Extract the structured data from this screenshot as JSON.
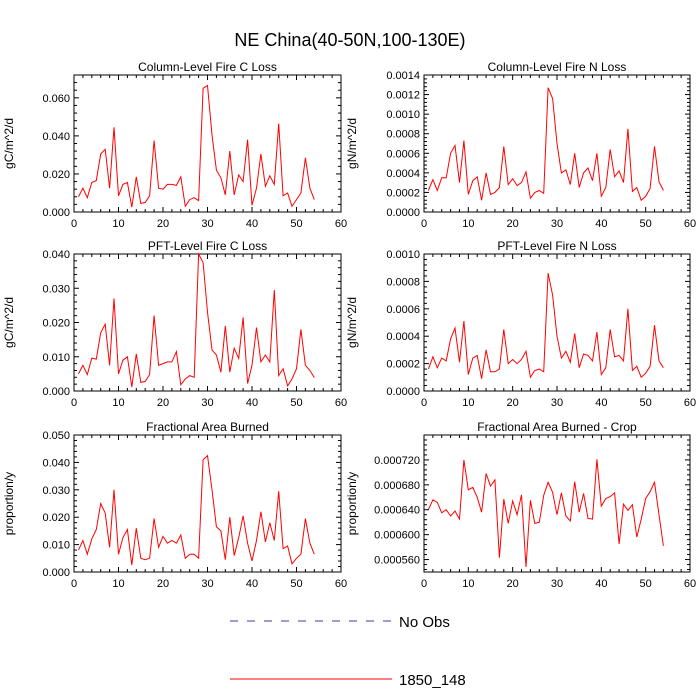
{
  "page": {
    "title": "NE China(40-50N,100-130E)"
  },
  "legend": {
    "items": [
      {
        "label": "No Obs",
        "color": "#3a3aa8",
        "style": "dashed"
      },
      {
        "label": "1850_148",
        "color": "#ff0000",
        "style": "solid"
      }
    ]
  },
  "chart_data": [
    {
      "type": "line",
      "title": "Column-Level Fire C Loss",
      "ylabel": "gC/m^2/d",
      "xlim": [
        0,
        60
      ],
      "ylim": [
        0,
        0.072
      ],
      "xticks": [
        0,
        10,
        20,
        30,
        40,
        50,
        60
      ],
      "yticks": [
        0,
        0.02,
        0.04,
        0.06
      ],
      "ytick_labels": [
        "0.000",
        "0.020",
        "0.040",
        "0.060"
      ],
      "series": [
        {
          "name": "1850_148",
          "color": "#ff0000",
          "x": [
            1,
            2,
            3,
            4,
            5,
            6,
            7,
            8,
            9,
            10,
            11,
            12,
            13,
            14,
            15,
            16,
            17,
            18,
            19,
            20,
            21,
            22,
            23,
            24,
            25,
            26,
            27,
            28,
            29,
            30,
            31,
            32,
            33,
            34,
            35,
            36,
            37,
            38,
            39,
            40,
            41,
            42,
            43,
            44,
            45,
            46,
            47,
            48,
            49,
            50,
            51,
            52,
            53,
            54
          ],
          "y": [
            0.008,
            0.0125,
            0.0075,
            0.0155,
            0.0165,
            0.0305,
            0.033,
            0.0125,
            0.0445,
            0.0085,
            0.0145,
            0.0155,
            0.0025,
            0.0185,
            0.0045,
            0.005,
            0.0085,
            0.0375,
            0.0125,
            0.012,
            0.0145,
            0.0145,
            0.014,
            0.0185,
            0.003,
            0.0065,
            0.0075,
            0.006,
            0.065,
            0.0665,
            0.0405,
            0.022,
            0.018,
            0.009,
            0.032,
            0.009,
            0.0195,
            0.016,
            0.038,
            0.0035,
            0.0125,
            0.0305,
            0.0135,
            0.019,
            0.0145,
            0.0465,
            0.0085,
            0.01,
            0.003,
            0.0065,
            0.01,
            0.0285,
            0.0125,
            0.0065
          ]
        }
      ]
    },
    {
      "type": "line",
      "title": "Column-Level Fire N Loss",
      "ylabel": "gN/m^2/d",
      "xlim": [
        0,
        60
      ],
      "ylim": [
        0,
        0.0014
      ],
      "xticks": [
        0,
        10,
        20,
        30,
        40,
        50,
        60
      ],
      "yticks": [
        0,
        0.0002,
        0.0004,
        0.0006,
        0.0008,
        0.001,
        0.0012,
        0.0014
      ],
      "ytick_labels": [
        "0.0000",
        "0.0002",
        "0.0004",
        "0.0006",
        "0.0008",
        "0.0010",
        "0.0012",
        "0.0014"
      ],
      "series": [
        {
          "name": "1850_148",
          "color": "#ff0000",
          "x": [
            1,
            2,
            3,
            4,
            5,
            6,
            7,
            8,
            9,
            10,
            11,
            12,
            13,
            14,
            15,
            16,
            17,
            18,
            19,
            20,
            21,
            22,
            23,
            24,
            25,
            26,
            27,
            28,
            29,
            30,
            31,
            32,
            33,
            34,
            35,
            36,
            37,
            38,
            39,
            40,
            41,
            42,
            43,
            44,
            45,
            46,
            47,
            48,
            49,
            50,
            51,
            52,
            53,
            54
          ],
          "y": [
            0.00022,
            0.00033,
            0.00022,
            0.00035,
            0.00035,
            0.0006,
            0.00068,
            0.0003,
            0.00073,
            0.00018,
            0.00032,
            0.00036,
            0.00012,
            0.0004,
            0.00018,
            0.0002,
            0.00025,
            0.00067,
            0.00028,
            0.00034,
            0.00027,
            0.0003,
            0.00041,
            0.00014,
            0.0002,
            0.00022,
            0.00019,
            0.00127,
            0.00116,
            0.0007,
            0.0004,
            0.00043,
            0.00028,
            0.0006,
            0.00025,
            0.0004,
            0.00045,
            0.00032,
            0.0006,
            0.00016,
            0.00025,
            0.00064,
            0.00036,
            0.00042,
            0.0003,
            0.00085,
            0.00021,
            0.00025,
            0.00012,
            0.00016,
            0.00024,
            0.00067,
            0.00031,
            0.00022
          ]
        }
      ]
    },
    {
      "type": "line",
      "title": "PFT-Level Fire C Loss",
      "ylabel": "gC/m^2/d",
      "xlim": [
        0,
        60
      ],
      "ylim": [
        0,
        0.04
      ],
      "xticks": [
        0,
        10,
        20,
        30,
        40,
        50,
        60
      ],
      "yticks": [
        0,
        0.01,
        0.02,
        0.03,
        0.04
      ],
      "ytick_labels": [
        "0.000",
        "0.010",
        "0.020",
        "0.030",
        "0.040"
      ],
      "series": [
        {
          "name": "1850_148",
          "color": "#ff0000",
          "x": [
            1,
            2,
            3,
            4,
            5,
            6,
            7,
            8,
            9,
            10,
            11,
            12,
            13,
            14,
            15,
            16,
            17,
            18,
            19,
            20,
            21,
            22,
            23,
            24,
            25,
            26,
            27,
            28,
            29,
            30,
            31,
            32,
            33,
            34,
            35,
            36,
            37,
            38,
            39,
            40,
            41,
            42,
            43,
            44,
            45,
            46,
            47,
            48,
            49,
            50,
            51,
            52,
            53,
            54
          ],
          "y": [
            0.005,
            0.0075,
            0.0048,
            0.0096,
            0.0093,
            0.017,
            0.0195,
            0.0075,
            0.027,
            0.005,
            0.009,
            0.01,
            0.0012,
            0.0108,
            0.0025,
            0.0028,
            0.0048,
            0.022,
            0.0075,
            0.008,
            0.0085,
            0.0085,
            0.0115,
            0.0018,
            0.0035,
            0.0045,
            0.004,
            0.04,
            0.0375,
            0.023,
            0.012,
            0.0105,
            0.0055,
            0.019,
            0.0055,
            0.0125,
            0.0095,
            0.0215,
            0.0022,
            0.0075,
            0.0185,
            0.0085,
            0.0105,
            0.0085,
            0.0295,
            0.0045,
            0.0065,
            0.0015,
            0.0035,
            0.0065,
            0.018,
            0.0075,
            0.006,
            0.0039
          ]
        }
      ]
    },
    {
      "type": "line",
      "title": "PFT-Level Fire N Loss",
      "ylabel": "gN/m^2/d",
      "xlim": [
        0,
        60
      ],
      "ylim": [
        0,
        0.001
      ],
      "xticks": [
        0,
        10,
        20,
        30,
        40,
        50,
        60
      ],
      "yticks": [
        0,
        0.0002,
        0.0004,
        0.0006,
        0.0008,
        0.001
      ],
      "ytick_labels": [
        "0.0000",
        "0.0002",
        "0.0004",
        "0.0006",
        "0.0008",
        "0.0010"
      ],
      "series": [
        {
          "name": "1850_148",
          "color": "#ff0000",
          "x": [
            1,
            2,
            3,
            4,
            5,
            6,
            7,
            8,
            9,
            10,
            11,
            12,
            13,
            14,
            15,
            16,
            17,
            18,
            19,
            20,
            21,
            22,
            23,
            24,
            25,
            26,
            27,
            28,
            29,
            30,
            31,
            32,
            33,
            34,
            35,
            36,
            37,
            38,
            39,
            40,
            41,
            42,
            43,
            44,
            45,
            46,
            47,
            48,
            49,
            50,
            51,
            52,
            53,
            54
          ],
          "y": [
            0.00016,
            0.00025,
            0.00017,
            0.00024,
            0.00022,
            0.00038,
            0.00046,
            0.00021,
            0.00051,
            0.00012,
            0.00024,
            0.00026,
            9e-05,
            0.0003,
            0.00014,
            0.00014,
            0.00016,
            0.00045,
            0.0002,
            0.00023,
            0.0002,
            0.00023,
            0.00029,
            0.0001,
            0.00015,
            0.00016,
            0.00014,
            0.00086,
            0.0007,
            0.0004,
            0.00024,
            0.00029,
            0.00021,
            0.00042,
            0.00017,
            0.00027,
            0.00026,
            0.00022,
            0.00043,
            0.00012,
            0.00017,
            0.00045,
            0.00025,
            0.00026,
            0.00022,
            0.0006,
            0.00015,
            0.00018,
            0.0001,
            0.00013,
            0.00018,
            0.00048,
            0.00022,
            0.00017
          ]
        }
      ]
    },
    {
      "type": "line",
      "title": "Fractional Area Burned",
      "ylabel": "proportion/y",
      "xlim": [
        0,
        60
      ],
      "ylim": [
        0,
        0.05
      ],
      "xticks": [
        0,
        10,
        20,
        30,
        40,
        50,
        60
      ],
      "yticks": [
        0,
        0.01,
        0.02,
        0.03,
        0.04,
        0.05
      ],
      "ytick_labels": [
        "0.000",
        "0.010",
        "0.020",
        "0.030",
        "0.040",
        "0.050"
      ],
      "series": [
        {
          "name": "1850_148",
          "color": "#ff0000",
          "x": [
            1,
            2,
            3,
            4,
            5,
            6,
            7,
            8,
            9,
            10,
            11,
            12,
            13,
            14,
            15,
            16,
            17,
            18,
            19,
            20,
            21,
            22,
            23,
            24,
            25,
            26,
            27,
            28,
            29,
            30,
            31,
            32,
            33,
            34,
            35,
            36,
            37,
            38,
            39,
            40,
            41,
            42,
            43,
            44,
            45,
            46,
            47,
            48,
            49,
            50,
            51,
            52,
            53,
            54
          ],
          "y": [
            0.008,
            0.0115,
            0.0065,
            0.012,
            0.0155,
            0.025,
            0.0215,
            0.009,
            0.03,
            0.0065,
            0.0125,
            0.0155,
            0.0025,
            0.016,
            0.005,
            0.0045,
            0.005,
            0.0195,
            0.009,
            0.013,
            0.0105,
            0.0115,
            0.0105,
            0.0135,
            0.005,
            0.0065,
            0.0065,
            0.005,
            0.041,
            0.0425,
            0.03,
            0.0165,
            0.015,
            0.0045,
            0.02,
            0.006,
            0.0125,
            0.0205,
            0.0105,
            0.004,
            0.0115,
            0.022,
            0.011,
            0.018,
            0.0115,
            0.0295,
            0.0085,
            0.0095,
            0.003,
            0.005,
            0.0065,
            0.0195,
            0.0105,
            0.0065
          ]
        }
      ]
    },
    {
      "type": "line",
      "title": "Fractional Area Burned - Crop",
      "ylabel": "proportion/y",
      "xlim": [
        0,
        60
      ],
      "ylim": [
        0.00054,
        0.00076
      ],
      "xticks": [
        0,
        10,
        20,
        30,
        40,
        50,
        60
      ],
      "yticks": [
        0.00056,
        0.0006,
        0.00064,
        0.00068,
        0.00072
      ],
      "ytick_labels": [
        "0.000560",
        "0.000600",
        "0.000640",
        "0.000680",
        "0.000720"
      ],
      "series": [
        {
          "name": "1850_148",
          "color": "#ff0000",
          "x": [
            1,
            2,
            3,
            4,
            5,
            6,
            7,
            8,
            9,
            10,
            11,
            12,
            13,
            14,
            15,
            16,
            17,
            18,
            19,
            20,
            21,
            22,
            23,
            24,
            25,
            26,
            27,
            28,
            29,
            30,
            31,
            32,
            33,
            34,
            35,
            36,
            37,
            38,
            39,
            40,
            41,
            42,
            43,
            44,
            45,
            46,
            47,
            48,
            49,
            50,
            51,
            52,
            53,
            54
          ],
          "y": [
            0.00064,
            0.000656,
            0.000652,
            0.000635,
            0.00064,
            0.00063,
            0.000638,
            0.000625,
            0.00072,
            0.000672,
            0.000676,
            0.00066,
            0.000636,
            0.000698,
            0.000678,
            0.000688,
            0.000563,
            0.000657,
            0.000618,
            0.000654,
            0.000632,
            0.000664,
            0.000548,
            0.000655,
            0.000618,
            0.00062,
            0.000663,
            0.000684,
            0.000668,
            0.000632,
            0.000667,
            0.00063,
            0.000622,
            0.000685,
            0.000636,
            0.000666,
            0.000626,
            0.000625,
            0.000721,
            0.000646,
            0.000658,
            0.000661,
            0.000667,
            0.000585,
            0.000649,
            0.000639,
            0.000648,
            0.000596,
            0.000625,
            0.000658,
            0.000669,
            0.000684,
            0.000632,
            0.000582
          ]
        }
      ]
    }
  ]
}
